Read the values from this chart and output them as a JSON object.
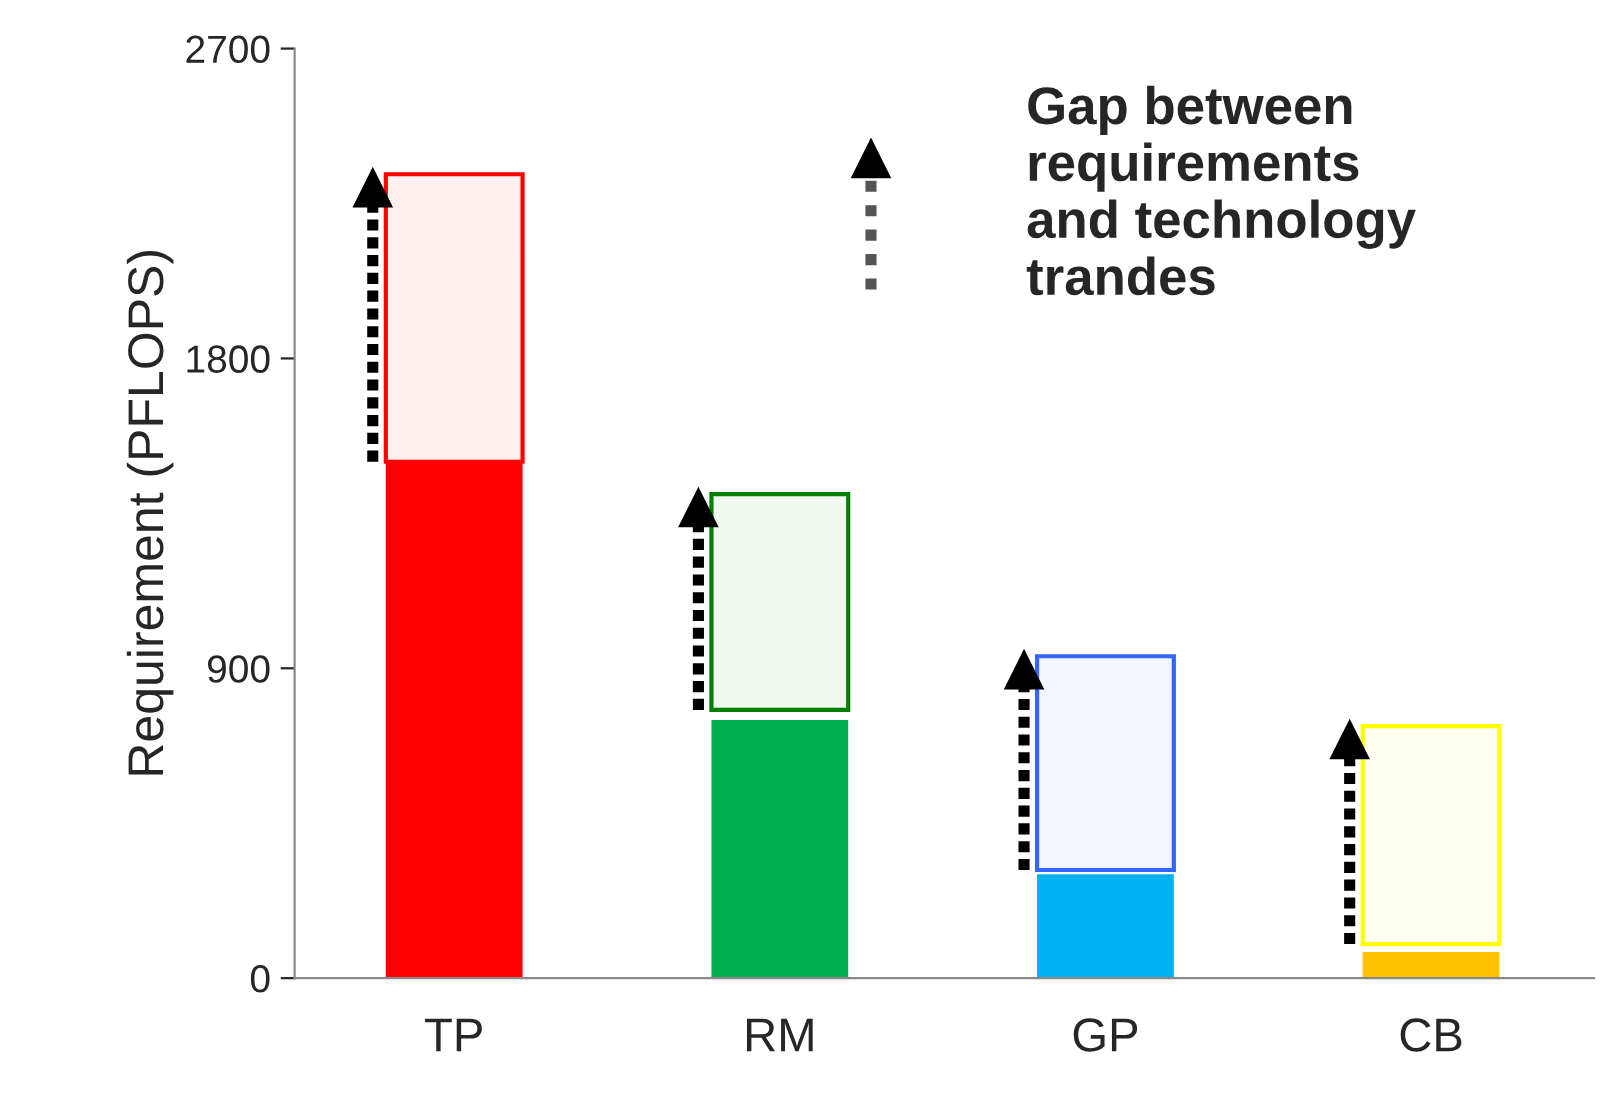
{
  "chart_data": {
    "type": "bar",
    "ylabel": "Requirement (PFLOPS)",
    "categories": [
      "TP",
      "RM",
      "GP",
      "CB"
    ],
    "series": [
      {
        "colors": [
          "#ff0000",
          "#00b050",
          "#00b0f0",
          "#ffc000"
        ],
        "values": [
          1500,
          750,
          302,
          76
        ]
      },
      {
        "colors": [
          "#ff0000",
          "#008000",
          "#3366ff",
          "#ffff00"
        ],
        "base": [
          1500,
          779,
          314,
          99
        ],
        "values": [
          835,
          627,
          621,
          633
        ]
      }
    ],
    "ylim": [
      0,
      2700
    ],
    "yticks": [
      0,
      900,
      1800,
      2700
    ],
    "grid": false,
    "legend": false,
    "annotations": [
      "Gap between\nrequirements\nand technology\ntrandes"
    ]
  }
}
